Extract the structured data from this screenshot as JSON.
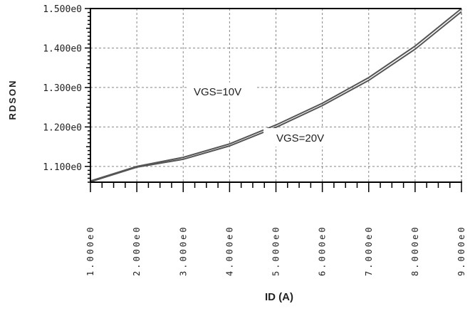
{
  "chart_data": {
    "type": "line",
    "xlabel": "ID (A)",
    "ylabel": "RDSON",
    "xlim": [
      1,
      9
    ],
    "ylim": [
      1.06,
      1.5
    ],
    "x_ticks": [
      1,
      2,
      3,
      4,
      5,
      6,
      7,
      8,
      9
    ],
    "x_tick_labels": [
      "1.000e0",
      "2.000e0",
      "3.000e0",
      "4.000e0",
      "5.000e0",
      "6.000e0",
      "7.000e0",
      "8.000e0",
      "9.000e0"
    ],
    "y_ticks": [
      1.1,
      1.2,
      1.3,
      1.4,
      1.5
    ],
    "y_tick_labels": [
      "1.100e0",
      "1.200e0",
      "1.300e0",
      "1.400e0",
      "1.500e0"
    ],
    "grid": true,
    "series": [
      {
        "name": "VGS=10V",
        "x": [
          1,
          2,
          3,
          4,
          5,
          6,
          7,
          8,
          9
        ],
        "y": [
          1.063,
          1.1,
          1.123,
          1.157,
          1.205,
          1.26,
          1.325,
          1.405,
          1.5
        ]
      },
      {
        "name": "VGS=20V",
        "x": [
          1,
          2,
          3,
          4,
          5,
          6,
          7,
          8,
          9
        ],
        "y": [
          1.061,
          1.098,
          1.118,
          1.152,
          1.199,
          1.254,
          1.318,
          1.397,
          1.492
        ]
      }
    ],
    "annotations": [
      "VGS=10V",
      "VGS=20V"
    ],
    "colors": {
      "line": "#555555",
      "grid": "#888888",
      "axis": "#000000"
    }
  }
}
